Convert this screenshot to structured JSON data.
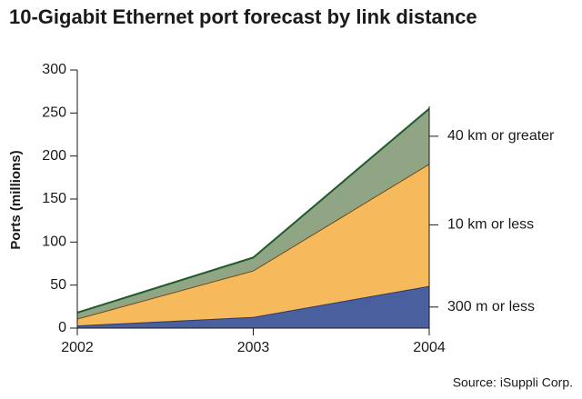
{
  "chart_data": {
    "type": "stacked_area",
    "title": "10-Gigabit Ethernet port forecast by link distance",
    "y_label": "Ports (millions)",
    "source": "Source: iSuppli Corp.",
    "categories": [
      "2002",
      "2003",
      "2004"
    ],
    "series": [
      {
        "name": "300 m or less",
        "color": "#4a5f9e",
        "values": [
          3,
          13,
          49
        ]
      },
      {
        "name": "10 km or less",
        "color": "#f6b95c",
        "values": [
          8,
          54,
          142
        ]
      },
      {
        "name": "40 km or greater",
        "color": "#8fa584",
        "values": [
          7,
          15,
          64
        ]
      }
    ],
    "ylim": [
      0,
      300
    ],
    "yticks": [
      0,
      50,
      100,
      150,
      200,
      250,
      300
    ]
  }
}
